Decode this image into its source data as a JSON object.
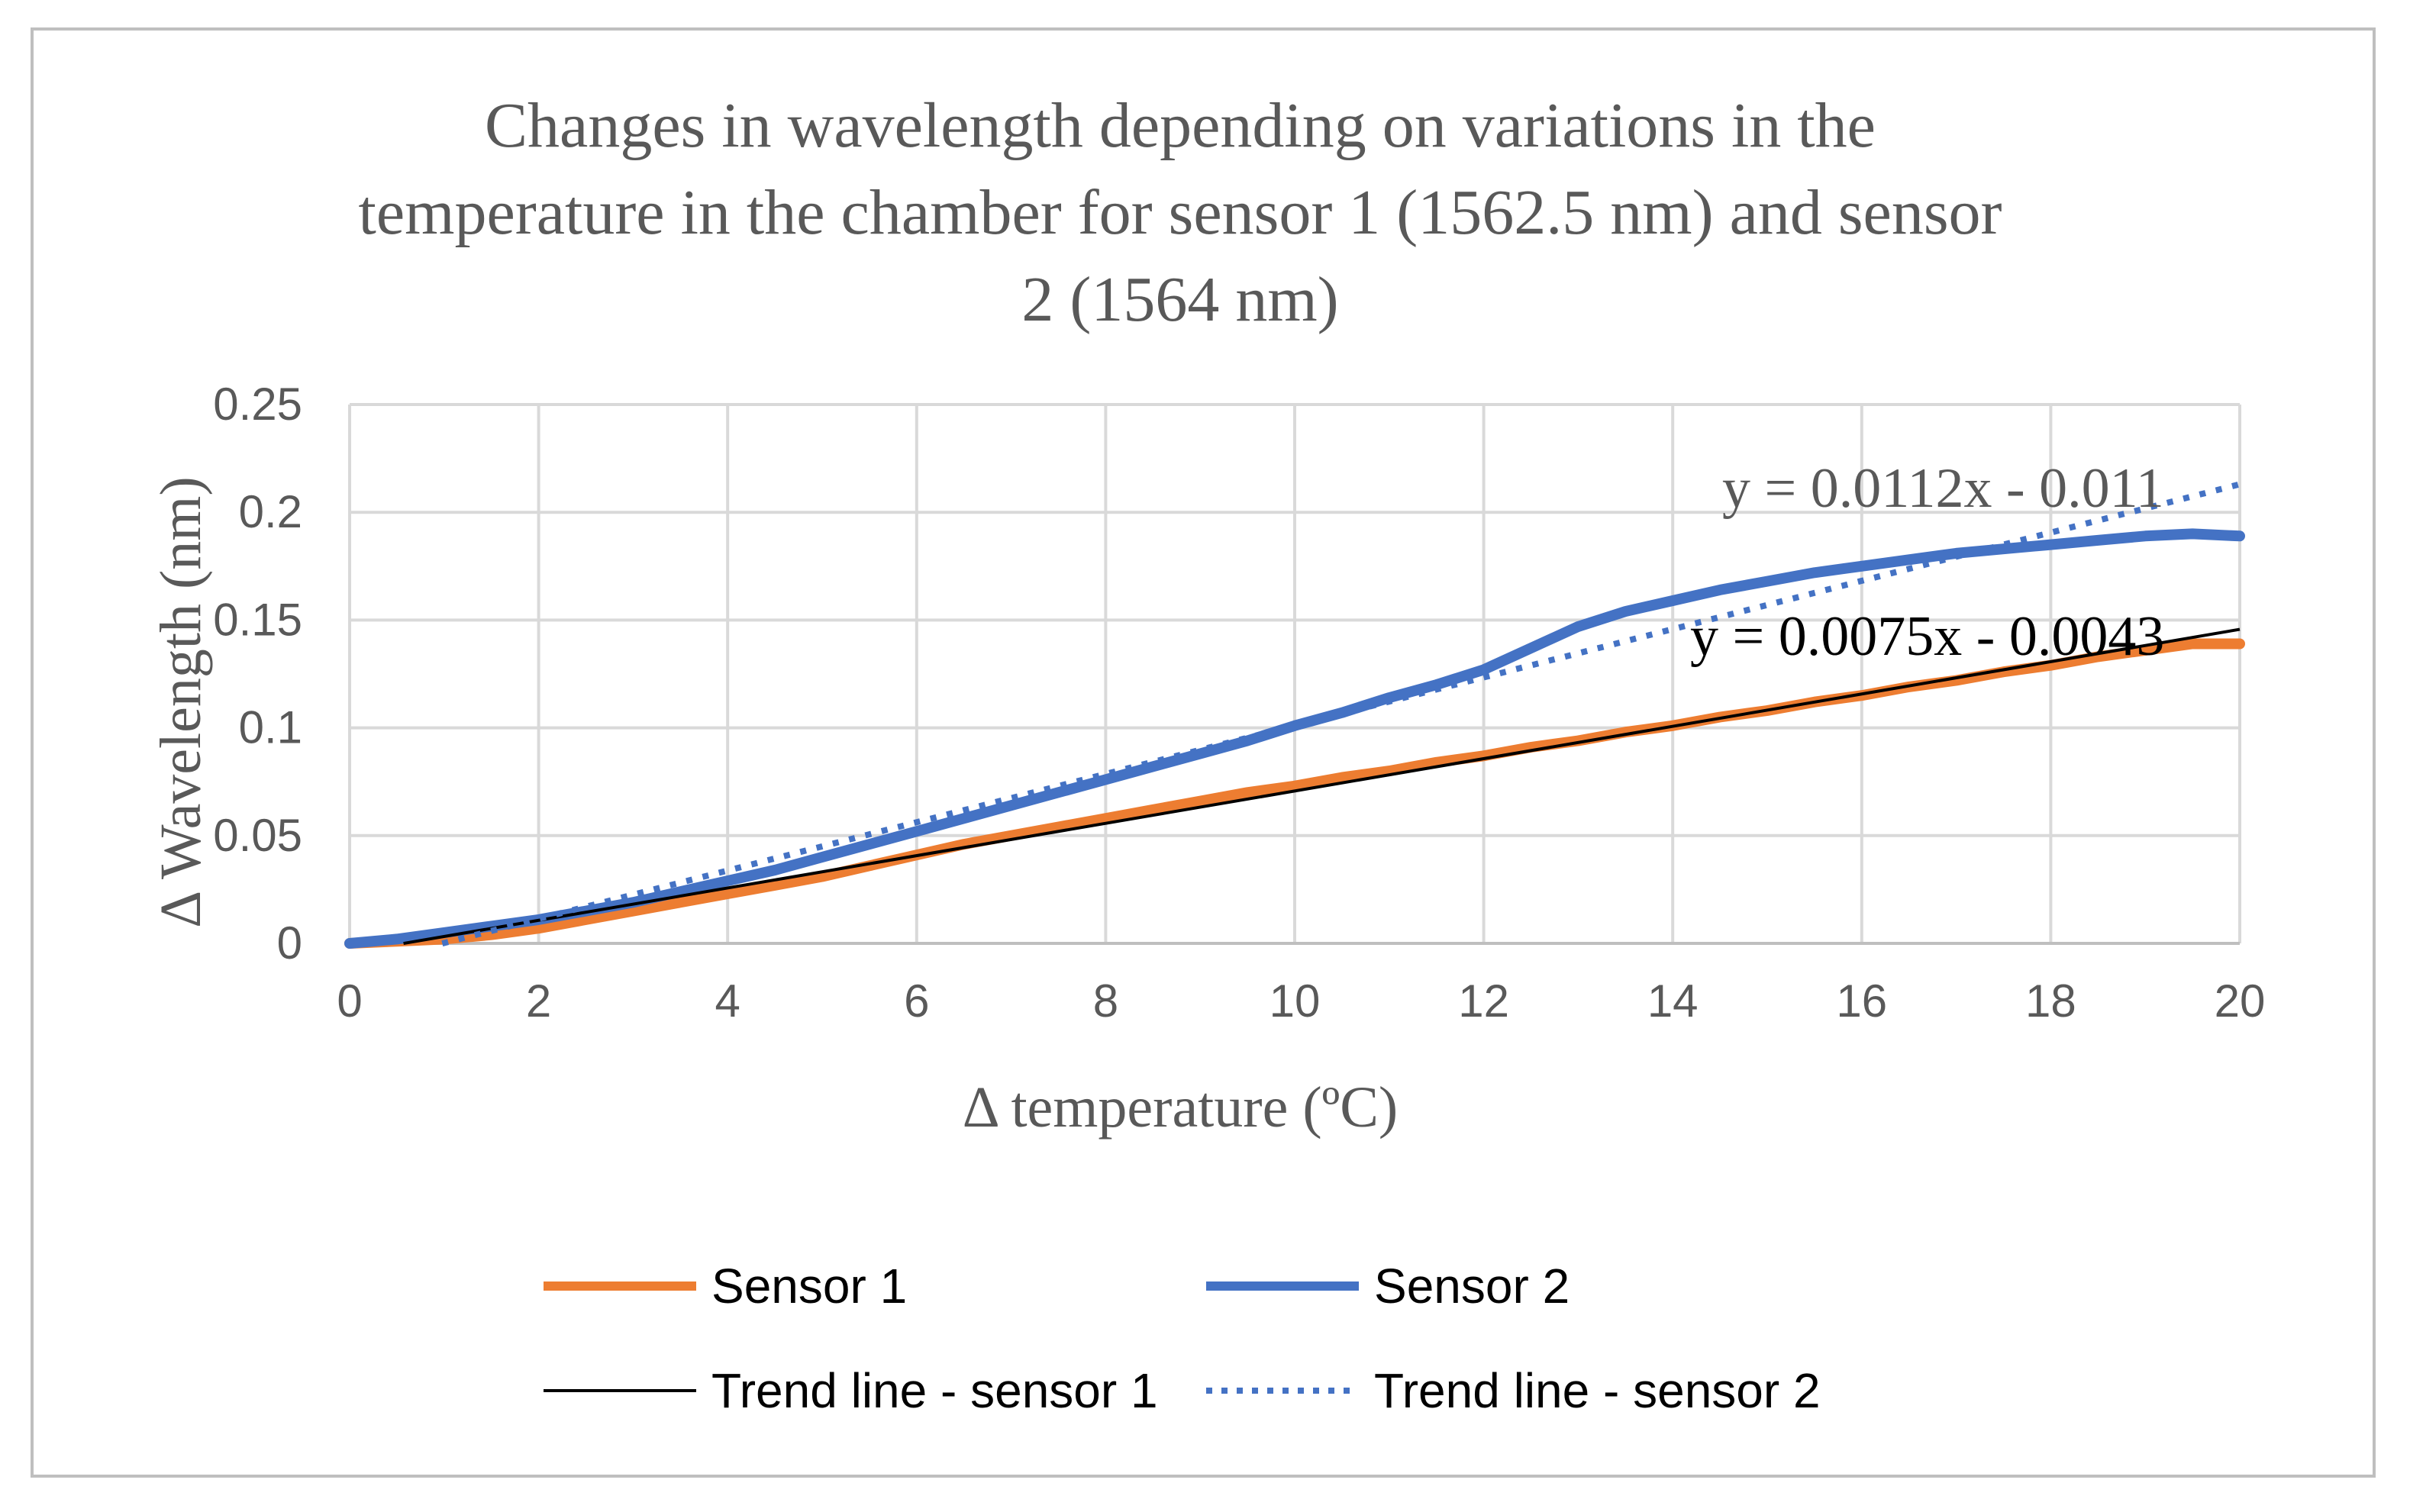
{
  "chart_data": {
    "type": "line",
    "title_lines": [
      "Changes in wavelength depending on variations in the",
      "temperature in the chamber for sensor 1 (1562.5 nm) and sensor",
      "2 (1564 nm)"
    ],
    "xlabel": "Δ temperature (ºC)",
    "ylabel": "Δ Wavelength (nm)",
    "xlim": [
      0,
      20
    ],
    "ylim": [
      0,
      0.25
    ],
    "x_ticks": [
      0,
      2,
      4,
      6,
      8,
      10,
      12,
      14,
      16,
      18,
      20
    ],
    "x_tick_labels": [
      "0",
      "2",
      "4",
      "6",
      "8",
      "10",
      "12",
      "14",
      "16",
      "18",
      "20"
    ],
    "y_ticks": [
      0,
      0.05,
      0.1,
      0.15,
      0.2,
      0.25
    ],
    "y_tick_labels": [
      "0",
      "0.05",
      "0.1",
      "0.15",
      "0.2",
      "0.25"
    ],
    "grid": true,
    "legend_position": "bottom",
    "series": [
      {
        "name": "Sensor 1",
        "color": "#ed7d31",
        "style": "solid",
        "x": [
          0,
          0.5,
          1,
          1.5,
          2,
          2.5,
          3,
          3.5,
          4,
          4.5,
          5,
          5.5,
          6,
          6.5,
          7,
          7.5,
          8,
          8.5,
          9,
          9.5,
          10,
          10.5,
          11,
          11.5,
          12,
          12.5,
          13,
          13.5,
          14,
          14.5,
          15,
          15.5,
          16,
          16.5,
          17,
          17.5,
          18,
          18.5,
          19,
          19.5,
          20
        ],
        "values": [
          0,
          0.001,
          0.002,
          0.004,
          0.007,
          0.011,
          0.015,
          0.019,
          0.023,
          0.027,
          0.031,
          0.036,
          0.041,
          0.046,
          0.05,
          0.054,
          0.058,
          0.062,
          0.066,
          0.07,
          0.073,
          0.077,
          0.08,
          0.084,
          0.087,
          0.091,
          0.094,
          0.098,
          0.101,
          0.105,
          0.108,
          0.112,
          0.115,
          0.119,
          0.122,
          0.126,
          0.129,
          0.133,
          0.136,
          0.139,
          0.139
        ]
      },
      {
        "name": "Sensor 2",
        "color": "#4472c4",
        "style": "solid",
        "x": [
          0,
          0.5,
          1,
          1.5,
          2,
          2.5,
          3,
          3.5,
          4,
          4.5,
          5,
          5.5,
          6,
          6.5,
          7,
          7.5,
          8,
          8.5,
          9,
          9.5,
          10,
          10.5,
          11,
          11.5,
          12,
          12.5,
          13,
          13.5,
          14,
          14.5,
          15,
          15.5,
          16,
          16.5,
          17,
          17.5,
          18,
          18.5,
          19,
          19.5,
          20
        ],
        "values": [
          0,
          0.002,
          0.005,
          0.008,
          0.011,
          0.015,
          0.019,
          0.024,
          0.029,
          0.034,
          0.04,
          0.046,
          0.052,
          0.058,
          0.064,
          0.07,
          0.076,
          0.082,
          0.088,
          0.094,
          0.101,
          0.107,
          0.114,
          0.12,
          0.127,
          0.137,
          0.147,
          0.154,
          0.159,
          0.164,
          0.168,
          0.172,
          0.175,
          0.178,
          0.181,
          0.183,
          0.185,
          0.187,
          0.189,
          0.19,
          0.189
        ]
      },
      {
        "name": "Trend line - sensor 1",
        "color": "#000000",
        "style": "solid-thin",
        "slope": 0.0075,
        "intercept": -0.0043,
        "x_range": [
          0.57,
          20
        ],
        "equation": "y = 0.0075x - 0.0043",
        "equation_color": "#000000"
      },
      {
        "name": "Trend line - sensor 2",
        "color": "#4472c4",
        "style": "dotted",
        "slope": 0.0112,
        "intercept": -0.011,
        "x_range": [
          0.98,
          20
        ],
        "equation": "y = 0.0112x - 0.011",
        "equation_color": "#595959"
      }
    ]
  }
}
